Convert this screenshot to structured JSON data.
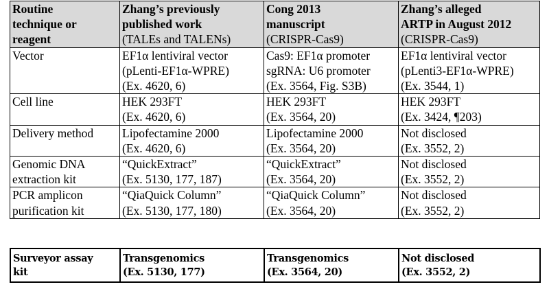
{
  "header": [
    {
      "bold": [
        "Routine",
        "technique or",
        "reagent"
      ],
      "normal": []
    },
    {
      "bold": [
        "Zhang’s previously",
        "published work"
      ],
      "normal": [
        "(TALEs and TALENs)"
      ]
    },
    {
      "bold": [
        "Cong 2013",
        "manuscript"
      ],
      "normal": [
        "(CRISPR-Cas9)"
      ]
    },
    {
      "bold": [
        "Zhang’s alleged",
        "ARTP in August 2012"
      ],
      "normal": [
        "(CRISPR-Cas9)"
      ]
    }
  ],
  "rows": [
    {
      "label": [
        "Vector"
      ],
      "cells": [
        [
          "EF1α lentiviral vector",
          "(pLenti-EF1α-WPRE)",
          "(Ex. 4620, 6)"
        ],
        [
          "Cas9: EF1α promoter",
          "sgRNA: U6 promoter",
          "(Ex. 3564, Fig. S3B)"
        ],
        [
          "EF1α lentiviral vector",
          "(pLenti3-EF1α-WPRE)",
          "(Ex. 3544, 1)"
        ]
      ]
    },
    {
      "label": [
        "Cell line"
      ],
      "cells": [
        [
          "HEK 293FT",
          "(Ex. 4620, 6)"
        ],
        [
          "HEK 293FT",
          "(Ex. 3564, 20)"
        ],
        [
          "HEK 293FT",
          "(Ex. 3424, ¶203)"
        ]
      ]
    },
    {
      "label": [
        "Delivery method"
      ],
      "cells": [
        [
          "Lipofectamine 2000",
          "(Ex. 4620, 6)"
        ],
        [
          "Lipofectamine 2000",
          "(Ex. 3564, 20)"
        ],
        [
          "Not disclosed",
          "(Ex. 3552, 2)"
        ]
      ]
    },
    {
      "label": [
        "Genomic DNA",
        "extraction kit"
      ],
      "cells": [
        [
          "“QuickExtract”",
          "(Ex. 5130, 177, 187)"
        ],
        [
          "“QuickExtract”",
          "(Ex. 3564, 20)"
        ],
        [
          "Not disclosed",
          "(Ex. 3552, 2)"
        ]
      ]
    },
    {
      "label": [
        "PCR amplicon",
        "purification kit"
      ],
      "cells": [
        [
          "“QiaQuick Column”",
          "(Ex. 5130, 177, 180)"
        ],
        [
          "“QiaQuick Column”",
          "(Ex. 3564, 20)"
        ],
        [
          "Not disclosed",
          "(Ex. 3552, 2)"
        ]
      ]
    }
  ],
  "surveyor": {
    "label": [
      "Surveyor assay",
      "kit"
    ],
    "cells": [
      [
        "Transgenomics",
        "(Ex. 5130, 177)"
      ],
      [
        "Transgenomics",
        "(Ex. 3564, 20)"
      ],
      [
        "Not disclosed",
        "(Ex. 3552, 2)"
      ]
    ]
  }
}
